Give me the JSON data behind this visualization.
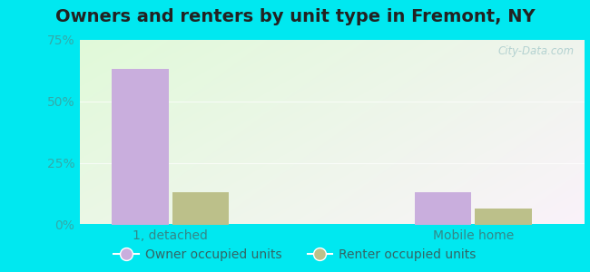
{
  "title": "Owners and renters by unit type in Fremont, NY",
  "categories": [
    "1, detached",
    "Mobile home"
  ],
  "owner_values": [
    63.2,
    13.2
  ],
  "renter_values": [
    13.2,
    6.6
  ],
  "owner_color": "#c9aedd",
  "renter_color": "#bcc08a",
  "ylim": [
    0,
    75
  ],
  "yticks": [
    0,
    25,
    50,
    75
  ],
  "yticklabels": [
    "0%",
    "25%",
    "50%",
    "75%"
  ],
  "bar_width": 0.28,
  "outer_color": "#00e8f0",
  "watermark": "City-Data.com",
  "legend_owner": "Owner occupied units",
  "legend_renter": "Renter occupied units",
  "title_fontsize": 14,
  "tick_fontsize": 10,
  "legend_fontsize": 10,
  "x_positions": [
    0.3,
    1.8
  ],
  "xlim": [
    0,
    2.5
  ]
}
